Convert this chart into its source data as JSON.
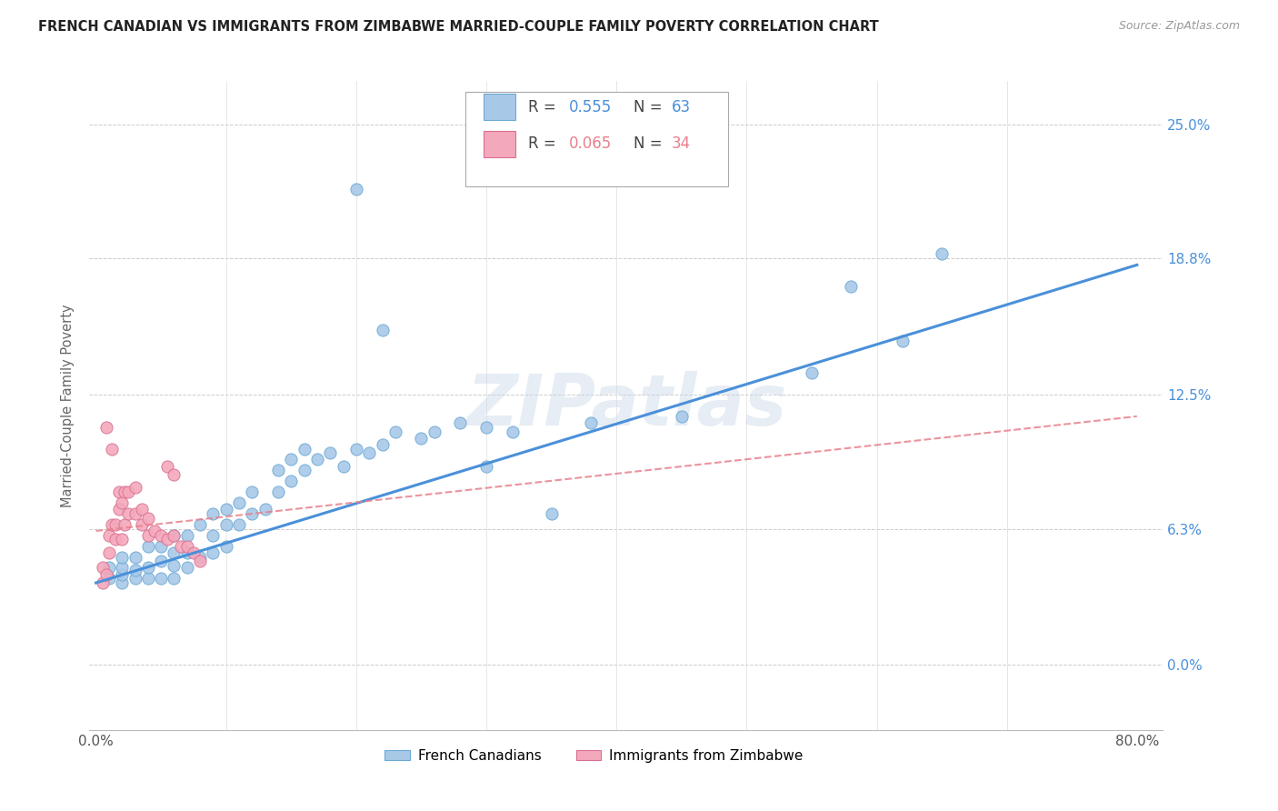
{
  "title": "FRENCH CANADIAN VS IMMIGRANTS FROM ZIMBABWE MARRIED-COUPLE FAMILY POVERTY CORRELATION CHART",
  "source": "Source: ZipAtlas.com",
  "ylabel": "Married-Couple Family Poverty",
  "ytick_values": [
    0.0,
    0.063,
    0.125,
    0.188,
    0.25
  ],
  "ytick_labels": [
    "0.0%",
    "6.3%",
    "12.5%",
    "18.8%",
    "25.0%"
  ],
  "xlim": [
    -0.005,
    0.82
  ],
  "ylim": [
    -0.03,
    0.27
  ],
  "color_blue": "#a8c8e8",
  "color_pink": "#f4a8bc",
  "line_blue": "#4a90d9",
  "line_pink": "#e8808c",
  "legend_label1": "French Canadians",
  "legend_label2": "Immigrants from Zimbabwe",
  "watermark": "ZIPatlas",
  "blue_line_x0": 0.0,
  "blue_line_x1": 0.8,
  "blue_line_y0": 0.038,
  "blue_line_y1": 0.185,
  "pink_line_x0": 0.0,
  "pink_line_x1": 0.8,
  "pink_line_y0": 0.062,
  "pink_line_y1": 0.115,
  "blue_x": [
    0.01,
    0.01,
    0.02,
    0.02,
    0.02,
    0.02,
    0.03,
    0.03,
    0.03,
    0.04,
    0.04,
    0.04,
    0.05,
    0.05,
    0.05,
    0.06,
    0.06,
    0.06,
    0.06,
    0.07,
    0.07,
    0.07,
    0.08,
    0.08,
    0.09,
    0.09,
    0.09,
    0.1,
    0.1,
    0.1,
    0.11,
    0.11,
    0.12,
    0.12,
    0.13,
    0.14,
    0.14,
    0.15,
    0.15,
    0.16,
    0.16,
    0.17,
    0.18,
    0.19,
    0.2,
    0.21,
    0.22,
    0.23,
    0.25,
    0.26,
    0.28,
    0.3,
    0.32,
    0.35,
    0.38,
    0.45,
    0.55,
    0.58,
    0.62,
    0.65,
    0.3,
    0.22,
    0.2
  ],
  "blue_y": [
    0.04,
    0.045,
    0.038,
    0.042,
    0.045,
    0.05,
    0.04,
    0.044,
    0.05,
    0.04,
    0.045,
    0.055,
    0.04,
    0.048,
    0.055,
    0.04,
    0.046,
    0.052,
    0.06,
    0.045,
    0.052,
    0.06,
    0.05,
    0.065,
    0.052,
    0.06,
    0.07,
    0.055,
    0.065,
    0.072,
    0.065,
    0.075,
    0.07,
    0.08,
    0.072,
    0.08,
    0.09,
    0.085,
    0.095,
    0.09,
    0.1,
    0.095,
    0.098,
    0.092,
    0.1,
    0.098,
    0.102,
    0.108,
    0.105,
    0.108,
    0.112,
    0.092,
    0.108,
    0.07,
    0.112,
    0.115,
    0.135,
    0.175,
    0.15,
    0.19,
    0.11,
    0.155,
    0.22
  ],
  "pink_x": [
    0.005,
    0.005,
    0.008,
    0.01,
    0.01,
    0.012,
    0.015,
    0.015,
    0.018,
    0.018,
    0.02,
    0.02,
    0.022,
    0.022,
    0.025,
    0.025,
    0.03,
    0.03,
    0.035,
    0.035,
    0.04,
    0.04,
    0.045,
    0.05,
    0.055,
    0.06,
    0.065,
    0.07,
    0.075,
    0.08,
    0.008,
    0.012,
    0.055,
    0.06
  ],
  "pink_y": [
    0.038,
    0.045,
    0.042,
    0.052,
    0.06,
    0.065,
    0.058,
    0.065,
    0.072,
    0.08,
    0.058,
    0.075,
    0.065,
    0.08,
    0.07,
    0.08,
    0.07,
    0.082,
    0.072,
    0.065,
    0.06,
    0.068,
    0.062,
    0.06,
    0.058,
    0.06,
    0.055,
    0.055,
    0.052,
    0.048,
    0.11,
    0.1,
    0.092,
    0.088
  ]
}
